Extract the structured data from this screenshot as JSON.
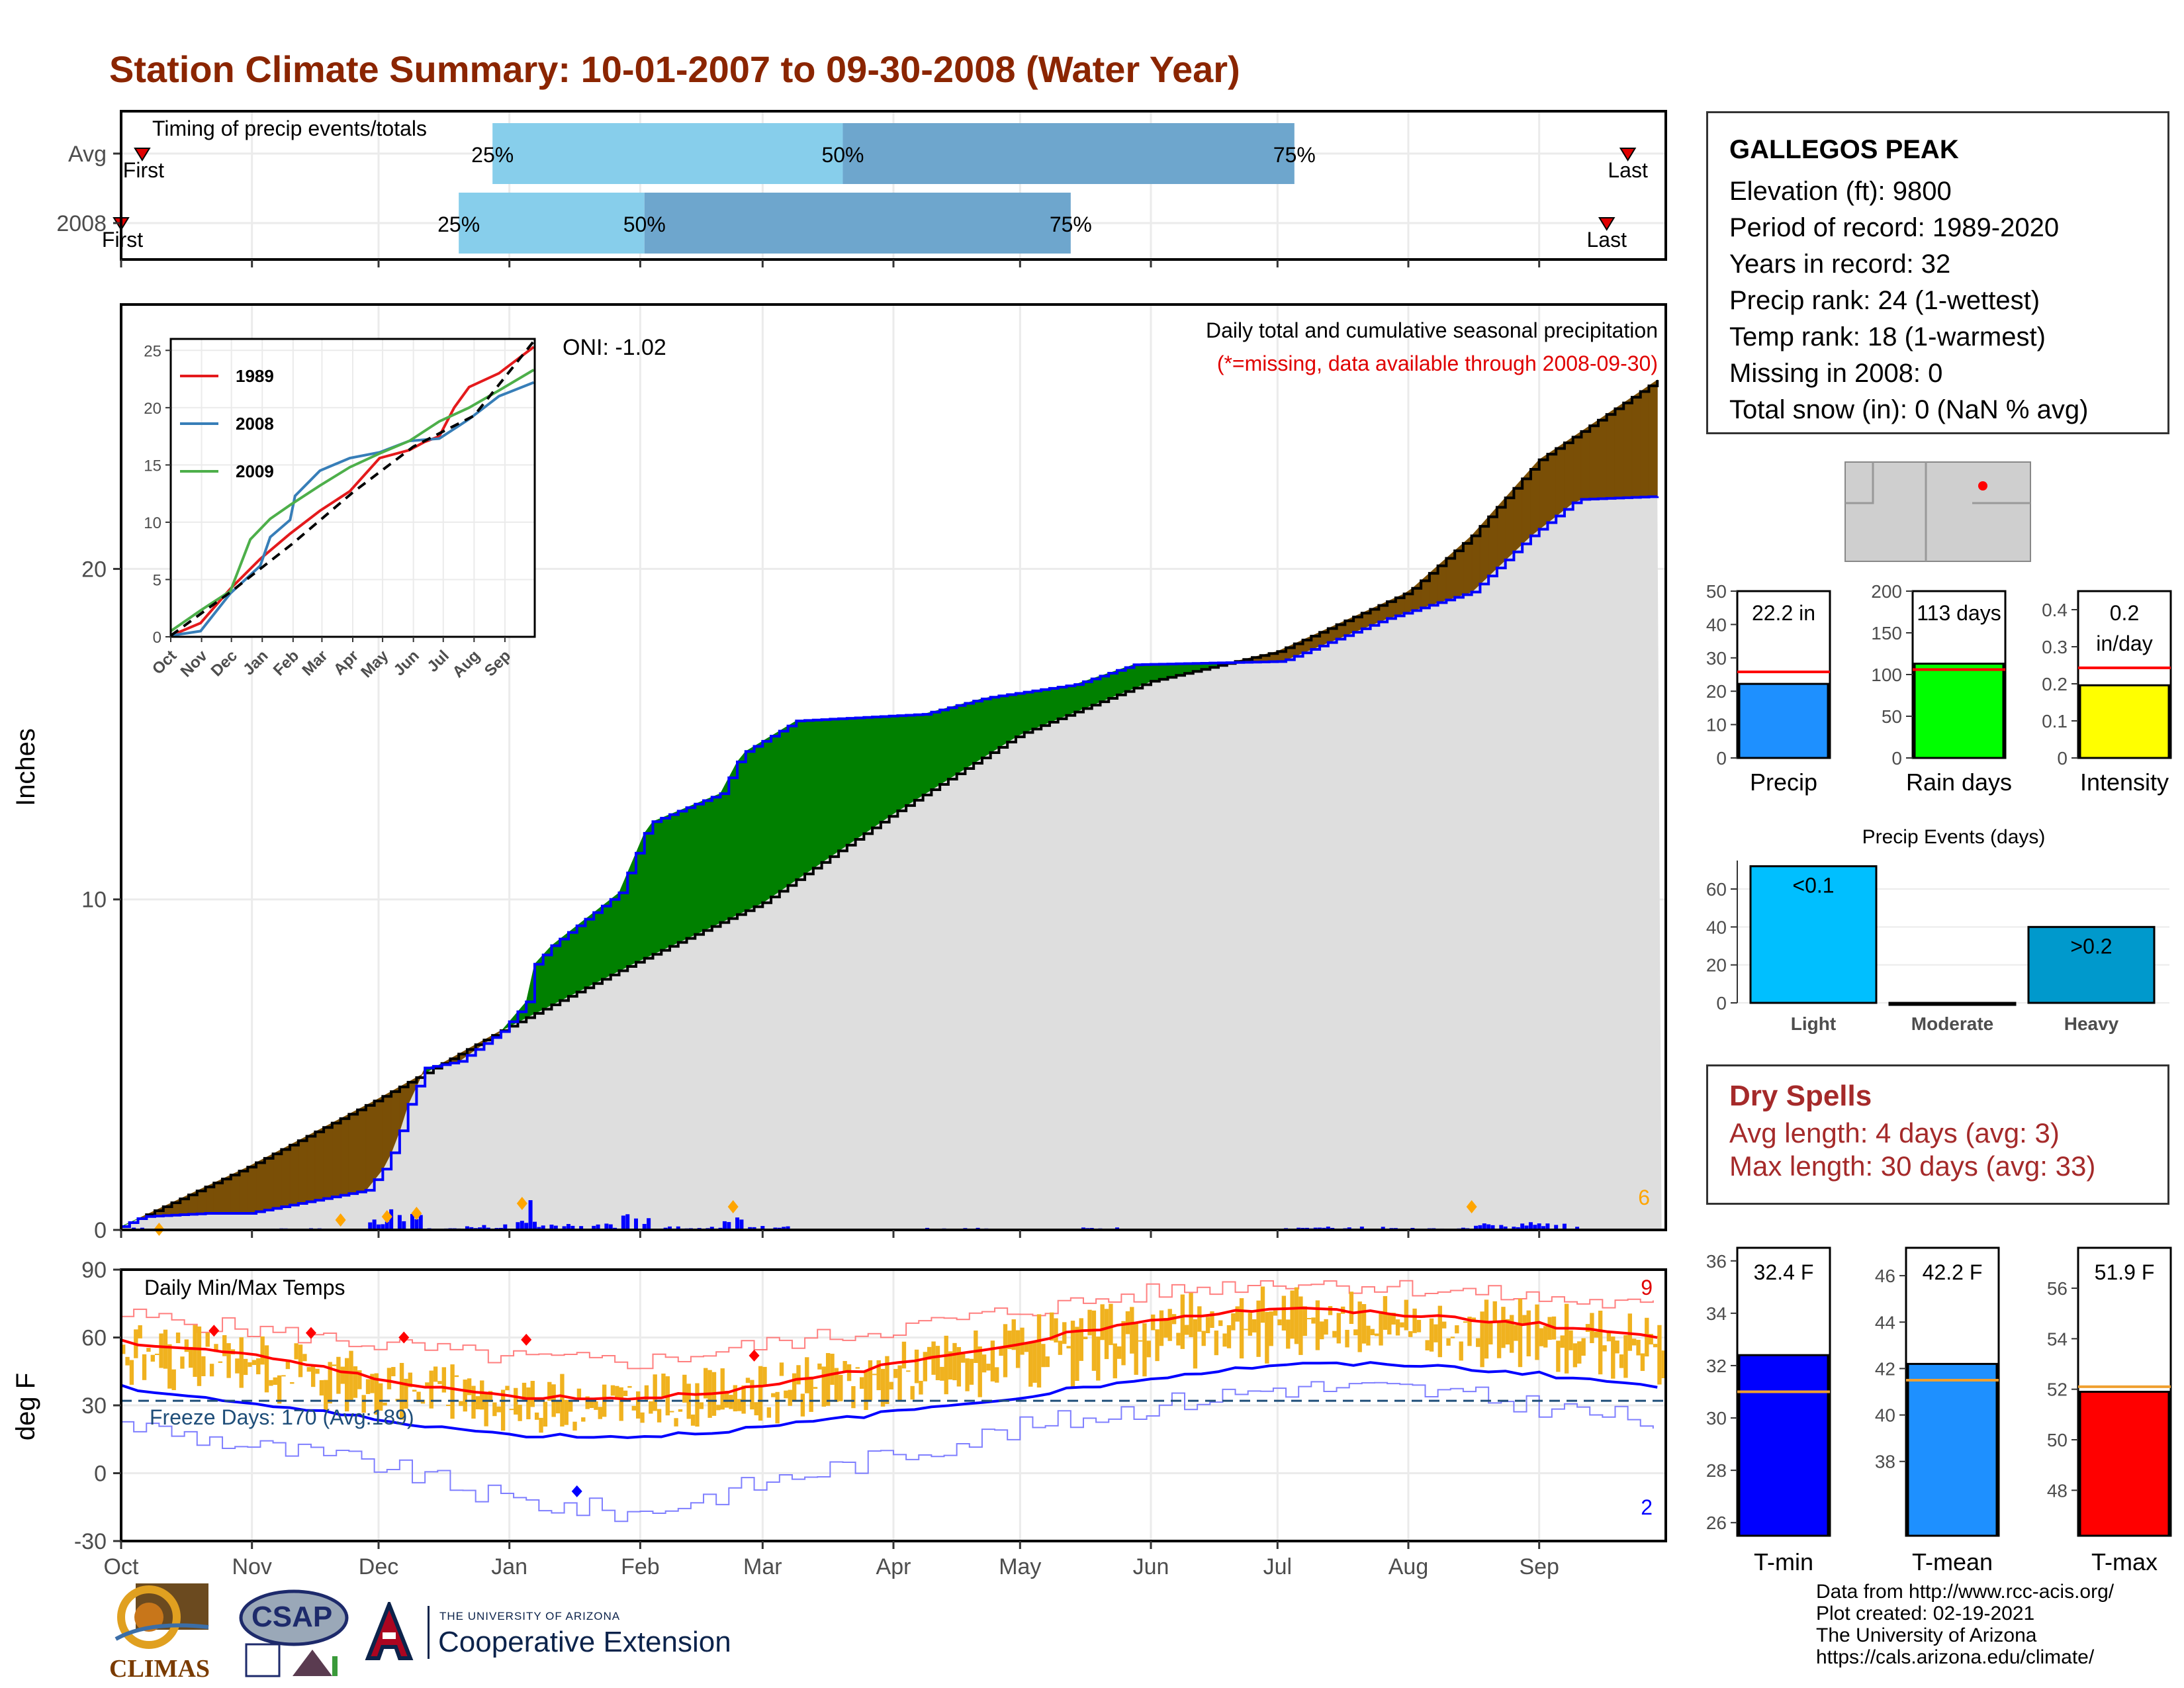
{
  "title": "Station Climate Summary: 10-01-2007 to 09-30-2008 (Water Year)",
  "station": {
    "name": "GALLEGOS PEAK",
    "lines": [
      "Elevation (ft): 9800",
      "Period of record: 1989-2020",
      "Years in record: 32",
      "Precip rank: 24 (1-wettest)",
      "Temp rank: 18 (1-warmest)",
      "Missing in 2008: 0",
      "Total snow (in): 0 (NaN % avg)"
    ]
  },
  "dry_spells": {
    "heading": "Dry Spells",
    "avg_line": "Avg length: 4 days (avg: 3)",
    "max_line": "Max length: 30 days (avg: 33)"
  },
  "credits": [
    "Data from http://www.rcc-acis.org/",
    "Plot created: 02-19-2021",
    "The University of Arizona",
    "https://cals.arizona.edu/climate/"
  ],
  "logos": {
    "climas": "CLIMAS",
    "csap": "CSAP",
    "ua_line1": "THE UNIVERSITY OF ARIZONA",
    "ua_line2": "Cooperative Extension"
  },
  "colors": {
    "title": "#8b2500",
    "cum_current": "#0000ff",
    "cum_avg": "#000000",
    "above_avg": "#008000",
    "below_avg": "#7a4f06",
    "fill_base": "#dedede",
    "timing_light": "#87ceeb",
    "timing_dark": "#6ea6cd",
    "tmax_avg": "#ff0000",
    "tmin_avg": "#0000ff",
    "temp_bars": "#f0b21f"
  },
  "chart_data": [
    {
      "id": "timing",
      "type": "bar",
      "title": "Timing of precip events/totals",
      "months": [
        "Oct",
        "Nov",
        "Dec",
        "Jan",
        "Feb",
        "Mar",
        "Apr",
        "May",
        "Jun",
        "Jul",
        "Aug",
        "Sep"
      ],
      "rows": [
        {
          "label": "Avg",
          "first_label": "First",
          "last_label": "Last",
          "first_day": 5,
          "last_day": 357,
          "p25_day": 88,
          "p50_day": 171,
          "p75_day": 278
        },
        {
          "label": "2008",
          "first_label": "First",
          "last_label": "Last",
          "first_day": 0,
          "last_day": 352,
          "p25_day": 80,
          "p50_day": 124,
          "p75_day": 225
        }
      ],
      "pct_labels": [
        "25%",
        "50%",
        "75%"
      ]
    },
    {
      "id": "cumulative",
      "type": "area",
      "title": "Daily total and cumulative seasonal precipitation",
      "subtitle": "(*=missing, data available through 2008-09-30)",
      "ylabel": "Inches",
      "ylim": [
        0,
        28
      ],
      "yticks": [
        0,
        10,
        20
      ],
      "xlabel_months": [
        "Oct",
        "Nov",
        "Dec",
        "Jan",
        "Feb",
        "Mar",
        "Apr",
        "May",
        "Jun",
        "Jul",
        "Aug",
        "Sep"
      ],
      "oni": "ONI: -1.02",
      "corner_count": "6",
      "avg_cum": [
        [
          0,
          0.1
        ],
        [
          30,
          1.9
        ],
        [
          60,
          3.9
        ],
        [
          91,
          6.1
        ],
        [
          122,
          8.1
        ],
        [
          152,
          9.9
        ],
        [
          183,
          12.6
        ],
        [
          213,
          15.0
        ],
        [
          244,
          16.6
        ],
        [
          274,
          17.5
        ],
        [
          305,
          19.3
        ],
        [
          320,
          21.0
        ],
        [
          336,
          23.3
        ],
        [
          350,
          24.5
        ],
        [
          365,
          25.8
        ]
      ],
      "obs_cum": [
        [
          0,
          0.1
        ],
        [
          5,
          0.4
        ],
        [
          20,
          0.5
        ],
        [
          30,
          0.5
        ],
        [
          58,
          1.2
        ],
        [
          63,
          2.0
        ],
        [
          66,
          3.0
        ],
        [
          68,
          3.8
        ],
        [
          72,
          4.9
        ],
        [
          80,
          5.1
        ],
        [
          90,
          6.0
        ],
        [
          96,
          6.9
        ],
        [
          97,
          7.9
        ],
        [
          102,
          8.6
        ],
        [
          110,
          9.4
        ],
        [
          118,
          10.2
        ],
        [
          125,
          12.3
        ],
        [
          142,
          13.2
        ],
        [
          147,
          14.4
        ],
        [
          160,
          15.4
        ],
        [
          190,
          15.6
        ],
        [
          205,
          16.1
        ],
        [
          226,
          16.5
        ],
        [
          240,
          17.1
        ],
        [
          275,
          17.2
        ],
        [
          300,
          18.5
        ],
        [
          320,
          19.3
        ],
        [
          334,
          21.0
        ],
        [
          345,
          22.1
        ],
        [
          365,
          22.2
        ]
      ],
      "daily_markers": [
        [
          9,
          0.02
        ],
        [
          52,
          0.3
        ],
        [
          63,
          0.4
        ],
        [
          70,
          0.5
        ],
        [
          95,
          0.8
        ],
        [
          145,
          0.7
        ],
        [
          320,
          0.7
        ]
      ]
    },
    {
      "id": "inset_cumulative",
      "type": "line",
      "yticks": [
        0,
        5,
        10,
        15,
        20,
        25
      ],
      "months": [
        "Oct",
        "Nov",
        "Dec",
        "Jan",
        "Feb",
        "Mar",
        "Apr",
        "May",
        "Jun",
        "Jul",
        "Aug",
        "Sep"
      ],
      "series": [
        {
          "name": "1989",
          "color": "#e41a1c",
          "values": [
            [
              0,
              0.1
            ],
            [
              30,
              1.2
            ],
            [
              60,
              4.2
            ],
            [
              90,
              6.8
            ],
            [
              120,
              9.0
            ],
            [
              150,
              11.0
            ],
            [
              180,
              12.7
            ],
            [
              210,
              15.6
            ],
            [
              240,
              16.3
            ],
            [
              255,
              17.0
            ],
            [
              270,
              17.5
            ],
            [
              285,
              20.0
            ],
            [
              300,
              21.8
            ],
            [
              330,
              23.0
            ],
            [
              365,
              25.3
            ]
          ]
        },
        {
          "name": "2008",
          "color": "#377eb8",
          "values": [
            [
              0,
              0.1
            ],
            [
              30,
              0.5
            ],
            [
              60,
              3.8
            ],
            [
              90,
              6.2
            ],
            [
              100,
              8.7
            ],
            [
              120,
              10.2
            ],
            [
              125,
              12.3
            ],
            [
              150,
              14.5
            ],
            [
              180,
              15.6
            ],
            [
              210,
              16.1
            ],
            [
              240,
              17.1
            ],
            [
              270,
              17.3
            ],
            [
              300,
              19.0
            ],
            [
              330,
              21.0
            ],
            [
              365,
              22.2
            ]
          ]
        },
        {
          "name": "2009",
          "color": "#4daf4a",
          "values": [
            [
              0,
              0.5
            ],
            [
              30,
              2.3
            ],
            [
              60,
              4.0
            ],
            [
              80,
              8.5
            ],
            [
              100,
              10.3
            ],
            [
              120,
              11.5
            ],
            [
              150,
              13.2
            ],
            [
              180,
              14.8
            ],
            [
              210,
              16.0
            ],
            [
              240,
              17.1
            ],
            [
              270,
              18.8
            ],
            [
              300,
              20.0
            ],
            [
              330,
              21.5
            ],
            [
              365,
              23.3
            ]
          ]
        }
      ],
      "avg_series": [
        [
          0,
          0.1
        ],
        [
          60,
          3.9
        ],
        [
          122,
          8.1
        ],
        [
          183,
          12.6
        ],
        [
          244,
          16.6
        ],
        [
          305,
          19.3
        ],
        [
          365,
          25.8
        ]
      ]
    },
    {
      "id": "temps",
      "type": "line",
      "title": "Daily Min/Max Temps",
      "ylabel": "deg F",
      "yticks": [
        -30,
        0,
        30,
        60,
        90
      ],
      "ylim": [
        -30,
        90
      ],
      "months": [
        "Oct",
        "Nov",
        "Dec",
        "Jan",
        "Feb",
        "Mar",
        "Apr",
        "May",
        "Jun",
        "Jul",
        "Aug",
        "Sep"
      ],
      "freeze_label": "Freeze Days: 170 (Avg:189)",
      "freeze_line": 32,
      "record_high_count": "9",
      "record_low_count": "2",
      "tmax_avg": [
        [
          0,
          58
        ],
        [
          30,
          53
        ],
        [
          60,
          42
        ],
        [
          91,
          34
        ],
        [
          122,
          33
        ],
        [
          152,
          38
        ],
        [
          183,
          48
        ],
        [
          213,
          58
        ],
        [
          244,
          68
        ],
        [
          274,
          73
        ],
        [
          305,
          70
        ],
        [
          335,
          66
        ],
        [
          365,
          60
        ]
      ],
      "tmin_avg": [
        [
          0,
          38
        ],
        [
          30,
          31
        ],
        [
          60,
          24
        ],
        [
          91,
          17
        ],
        [
          122,
          16
        ],
        [
          152,
          20
        ],
        [
          183,
          27
        ],
        [
          213,
          34
        ],
        [
          244,
          42
        ],
        [
          274,
          48
        ],
        [
          305,
          48
        ],
        [
          335,
          44
        ],
        [
          365,
          38
        ]
      ],
      "tmax_rec": [
        [
          0,
          70
        ],
        [
          60,
          57
        ],
        [
          91,
          51
        ],
        [
          122,
          49
        ],
        [
          152,
          57
        ],
        [
          183,
          64
        ],
        [
          213,
          72
        ],
        [
          244,
          80
        ],
        [
          274,
          85
        ],
        [
          305,
          82
        ],
        [
          365,
          73
        ]
      ],
      "tmin_rec": [
        [
          0,
          22
        ],
        [
          30,
          12
        ],
        [
          60,
          4
        ],
        [
          91,
          -12
        ],
        [
          122,
          -18
        ],
        [
          152,
          -4
        ],
        [
          183,
          8
        ],
        [
          213,
          20
        ],
        [
          244,
          30
        ],
        [
          274,
          38
        ],
        [
          305,
          37
        ],
        [
          335,
          30
        ],
        [
          365,
          22
        ]
      ]
    },
    {
      "id": "totals",
      "type": "bar",
      "panels": [
        {
          "label": "Precip",
          "value_label": "22.2 in",
          "value": 22.2,
          "avg": 25.8,
          "ylim": [
            0,
            50
          ],
          "yticks": [
            0,
            10,
            20,
            30,
            40,
            50
          ],
          "color": "#1e90ff"
        },
        {
          "label": "Rain days",
          "value_label": "113 days",
          "value": 113,
          "avg": 106,
          "ylim": [
            0,
            200
          ],
          "yticks": [
            0,
            50,
            100,
            150,
            200
          ],
          "color": "#00ff00"
        },
        {
          "label": "Intensity",
          "value_label": "0.2 in/day",
          "value": 0.196,
          "avg": 0.243,
          "ylim": [
            0,
            0.45
          ],
          "yticks": [
            0.0,
            0.1,
            0.2,
            0.3,
            0.4
          ],
          "color": "#ffff00"
        }
      ]
    },
    {
      "id": "events",
      "type": "bar",
      "title": "Precip Events (days)",
      "categories": [
        "Light",
        "Moderate",
        "Heavy"
      ],
      "values": [
        72,
        0,
        40
      ],
      "bar_labels": [
        "<0.1",
        "",
        ">0.2"
      ],
      "yticks": [
        0,
        20,
        40,
        60
      ],
      "ylim": [
        0,
        75
      ],
      "colors": [
        "#00bfff",
        "#00bfff",
        "#0099cc"
      ]
    },
    {
      "id": "temp_summary",
      "type": "bar",
      "panels": [
        {
          "label": "T-min",
          "value_label": "32.4 F",
          "value": 32.4,
          "avg": 31.0,
          "ylim": [
            25.5,
            36.5
          ],
          "yticks": [
            26,
            28,
            30,
            32,
            34,
            36
          ],
          "color": "#0000ff"
        },
        {
          "label": "T-mean",
          "value_label": "42.2 F",
          "value": 42.2,
          "avg": 41.5,
          "ylim": [
            34.8,
            47.2
          ],
          "yticks": [
            38,
            40,
            42,
            44,
            46
          ],
          "color": "#1e90ff"
        },
        {
          "label": "T-max",
          "value_label": "51.9 F",
          "value": 51.9,
          "avg": 52.1,
          "ylim": [
            46.2,
            57.6
          ],
          "yticks": [
            48,
            50,
            52,
            54,
            56
          ],
          "color": "#ff0000"
        }
      ]
    }
  ]
}
